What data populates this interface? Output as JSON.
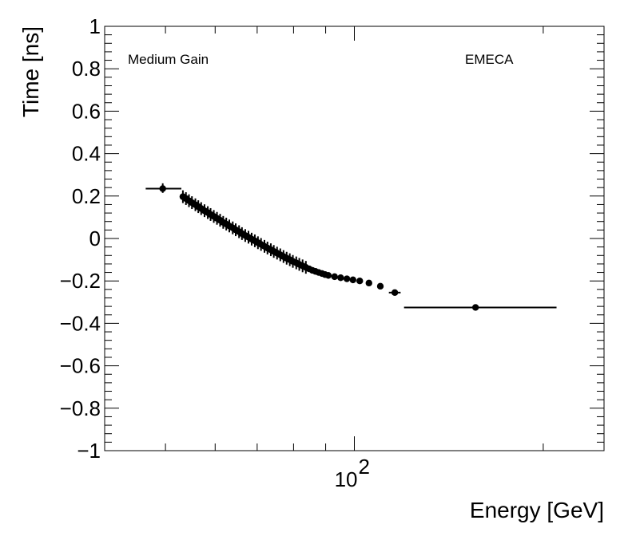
{
  "chart_data": {
    "type": "scatter",
    "xlabel": "Energy [GeV]",
    "ylabel": "Time [ns]",
    "x_scale": "log",
    "xlim": [
      40,
      250
    ],
    "ylim": [
      -1,
      1
    ],
    "yticks": [
      "1",
      "0.8",
      "0.6",
      "0.4",
      "0.2",
      "0",
      "−0.2",
      "−0.4",
      "−0.6",
      "−0.8",
      "−1"
    ],
    "ytick_values": [
      1,
      0.8,
      0.6,
      0.4,
      0.2,
      0,
      -0.2,
      -0.4,
      -0.6,
      -0.8,
      -1
    ],
    "xtick_base": "10",
    "xtick_exp": "2",
    "xtick_value": 100,
    "grid": false,
    "annotations": {
      "left": "Medium Gain",
      "right": "EMECA"
    },
    "points": [
      {
        "x": 49.5,
        "y": 0.235,
        "xlo": 46.5,
        "xhi": 53.0,
        "ylo": 0.215,
        "yhi": 0.26
      },
      {
        "x": 53.3,
        "y": 0.197,
        "yerr": 0.03
      },
      {
        "x": 53.9,
        "y": 0.188,
        "yerr": 0.03
      },
      {
        "x": 54.5,
        "y": 0.178,
        "yerr": 0.03
      },
      {
        "x": 55.1,
        "y": 0.169,
        "yerr": 0.03
      },
      {
        "x": 55.8,
        "y": 0.159,
        "yerr": 0.03
      },
      {
        "x": 56.4,
        "y": 0.15,
        "yerr": 0.03
      },
      {
        "x": 57.0,
        "y": 0.141,
        "yerr": 0.03
      },
      {
        "x": 57.7,
        "y": 0.131,
        "yerr": 0.03
      },
      {
        "x": 58.4,
        "y": 0.122,
        "yerr": 0.03
      },
      {
        "x": 59.0,
        "y": 0.113,
        "yerr": 0.03
      },
      {
        "x": 59.7,
        "y": 0.104,
        "yerr": 0.03
      },
      {
        "x": 60.4,
        "y": 0.095,
        "yerr": 0.03
      },
      {
        "x": 61.1,
        "y": 0.086,
        "yerr": 0.03
      },
      {
        "x": 61.8,
        "y": 0.076,
        "yerr": 0.03
      },
      {
        "x": 62.5,
        "y": 0.068,
        "yerr": 0.03
      },
      {
        "x": 63.2,
        "y": 0.059,
        "yerr": 0.03
      },
      {
        "x": 64.0,
        "y": 0.05,
        "yerr": 0.03
      },
      {
        "x": 64.7,
        "y": 0.041,
        "yerr": 0.03
      },
      {
        "x": 65.5,
        "y": 0.032,
        "yerr": 0.03
      },
      {
        "x": 66.2,
        "y": 0.023,
        "yerr": 0.03
      },
      {
        "x": 67.0,
        "y": 0.014,
        "yerr": 0.03
      },
      {
        "x": 67.8,
        "y": 0.006,
        "yerr": 0.03
      },
      {
        "x": 68.6,
        "y": -0.003,
        "yerr": 0.03
      },
      {
        "x": 69.4,
        "y": -0.011,
        "yerr": 0.03
      },
      {
        "x": 70.2,
        "y": -0.02,
        "yerr": 0.03
      },
      {
        "x": 71.0,
        "y": -0.028,
        "yerr": 0.03
      },
      {
        "x": 71.9,
        "y": -0.037,
        "yerr": 0.03
      },
      {
        "x": 72.7,
        "y": -0.045,
        "yerr": 0.03
      },
      {
        "x": 73.6,
        "y": -0.053,
        "yerr": 0.03
      },
      {
        "x": 74.4,
        "y": -0.061,
        "yerr": 0.03
      },
      {
        "x": 75.3,
        "y": -0.069,
        "yerr": 0.03
      },
      {
        "x": 76.2,
        "y": -0.077,
        "yerr": 0.03
      },
      {
        "x": 77.1,
        "y": -0.085,
        "yerr": 0.03
      },
      {
        "x": 78.0,
        "y": -0.093,
        "yerr": 0.03
      },
      {
        "x": 78.9,
        "y": -0.1,
        "yerr": 0.03
      },
      {
        "x": 79.8,
        "y": -0.108,
        "yerr": 0.03
      },
      {
        "x": 80.8,
        "y": -0.115,
        "yerr": 0.03
      },
      {
        "x": 81.7,
        "y": -0.122,
        "yerr": 0.03
      },
      {
        "x": 82.7,
        "y": -0.129,
        "yerr": 0.03
      },
      {
        "x": 83.7,
        "y": -0.136,
        "yerr": 0.03
      },
      {
        "x": 84.7,
        "y": -0.143,
        "yerr": 0.015
      },
      {
        "x": 85.7,
        "y": -0.15,
        "yerr": 0.015
      },
      {
        "x": 86.7,
        "y": -0.155,
        "yerr": 0.015
      },
      {
        "x": 87.7,
        "y": -0.16,
        "yerr": 0.015
      },
      {
        "x": 88.8,
        "y": -0.165,
        "yerr": 0.015
      },
      {
        "x": 89.8,
        "y": -0.17,
        "yerr": 0.015
      },
      {
        "x": 90.9,
        "y": -0.174,
        "yerr": 0.015
      },
      {
        "x": 93.0,
        "y": -0.18,
        "yerr": 0.015
      },
      {
        "x": 95.1,
        "y": -0.185,
        "yerr": 0.015
      },
      {
        "x": 97.3,
        "y": -0.19,
        "yerr": 0.015
      },
      {
        "x": 99.5,
        "y": -0.195,
        "yerr": 0.015
      },
      {
        "x": 102.0,
        "y": -0.2,
        "yerr": 0.012
      },
      {
        "x": 105.5,
        "y": -0.21,
        "yerr": 0.012
      },
      {
        "x": 110.0,
        "y": -0.225,
        "yerr": 0.012
      },
      {
        "x": 116.0,
        "y": -0.255,
        "xlo": 113.5,
        "xhi": 118.5,
        "yerr": 0.012
      },
      {
        "x": 156.0,
        "y": -0.325,
        "xlo": 120.0,
        "xhi": 210.0,
        "yerr": 0.01
      }
    ]
  }
}
